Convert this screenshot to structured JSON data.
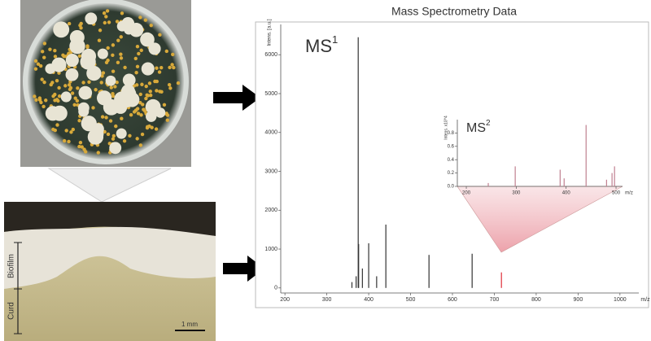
{
  "chart_data": [
    {
      "type": "stem",
      "title": "Mass Spectrometry Data",
      "annotation": {
        "text": "MS",
        "sup": "1"
      },
      "x_label": "m/z",
      "y_label": "Intens. [a.u.]",
      "x": [
        360,
        370,
        375,
        376,
        385,
        400,
        419,
        441,
        544,
        647,
        717
      ],
      "values": [
        150,
        300,
        6450,
        1130,
        500,
        1150,
        300,
        1630,
        850,
        880,
        400
      ],
      "colors": [
        "#333333",
        "#333333",
        "#333333",
        "#333333",
        "#333333",
        "#333333",
        "#333333",
        "#333333",
        "#333333",
        "#333333",
        "#e0303a"
      ],
      "xlim": [
        190,
        1045
      ],
      "ylim": [
        -130,
        6780
      ],
      "xticks": [
        200,
        300,
        400,
        500,
        600,
        700,
        800,
        900,
        1000
      ],
      "yticks": [
        0,
        1000,
        2000,
        3000,
        4000,
        5000,
        6000
      ]
    },
    {
      "type": "stem",
      "annotation": {
        "text": "MS",
        "sup": "2"
      },
      "x_label": "m/z",
      "y_label": "Intens. x10^4",
      "x": [
        244,
        298,
        388,
        396,
        440,
        481,
        492,
        497
      ],
      "values": [
        0.05,
        0.3,
        0.25,
        0.12,
        0.92,
        0.1,
        0.2,
        0.3
      ],
      "color": "#c08090",
      "xlim": [
        182,
        513
      ],
      "ylim": [
        0,
        1.0
      ],
      "xticks": [
        200,
        300,
        400,
        500
      ],
      "yticks": [
        {
          "value": 0,
          "label": "0.0"
        },
        {
          "value": 0.2,
          "label": "0.2"
        },
        {
          "value": 0.4,
          "label": "0.4"
        },
        {
          "value": 0.6,
          "label": "0.6"
        },
        {
          "value": 0.8,
          "label": "0.8"
        }
      ]
    }
  ],
  "images": {
    "biofilm_label": "Biofilm",
    "curd_label": "Curd",
    "scale_label": "1 mm"
  }
}
